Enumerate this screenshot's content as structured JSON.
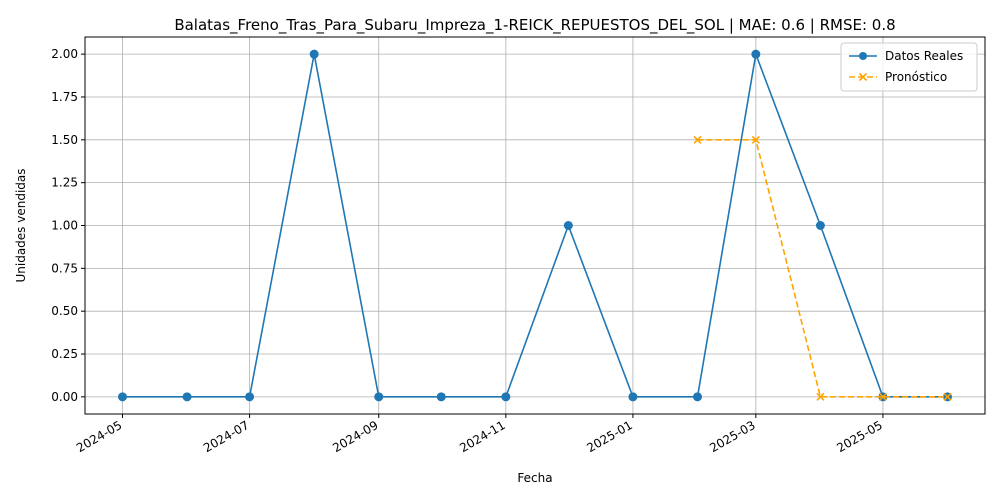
{
  "chart_data": {
    "type": "line",
    "title": "Balatas_Freno_Tras_Para_Subaru_Impreza_1-REICK_REPUESTOS_DEL_SOL | MAE: 0.6 | RMSE: 0.8",
    "xlabel": "Fecha",
    "ylabel": "Unidades vendidas",
    "x_ticks": [
      "2024-05",
      "2024-07",
      "2024-09",
      "2024-11",
      "2025-01",
      "2025-03",
      "2025-05"
    ],
    "y_ticks": [
      "0.00",
      "0.25",
      "0.50",
      "0.75",
      "1.00",
      "1.25",
      "1.50",
      "1.75",
      "2.00"
    ],
    "ylim": [
      -0.1,
      2.1
    ],
    "xlim": [
      "2024-04-13",
      "2025-06-19"
    ],
    "grid": true,
    "legend_position": "upper right",
    "series": [
      {
        "name": "Datos Reales",
        "color": "#1f77b4",
        "style": "solid",
        "marker": "circle",
        "x": [
          "2024-05-01",
          "2024-06-01",
          "2024-07-01",
          "2024-08-01",
          "2024-09-01",
          "2024-10-01",
          "2024-11-01",
          "2024-12-01",
          "2025-01-01",
          "2025-02-01",
          "2025-03-01",
          "2025-04-01",
          "2025-05-01",
          "2025-06-01"
        ],
        "values": [
          0,
          0,
          0,
          2,
          0,
          0,
          0,
          1,
          0,
          0,
          2,
          1,
          0,
          0
        ]
      },
      {
        "name": "Pronóstico",
        "color": "#ffa500",
        "style": "dashed",
        "marker": "x",
        "x": [
          "2025-02-01",
          "2025-03-01",
          "2025-04-01",
          "2025-05-01",
          "2025-06-01"
        ],
        "values": [
          1.5,
          1.5,
          0,
          0,
          0
        ]
      }
    ]
  }
}
